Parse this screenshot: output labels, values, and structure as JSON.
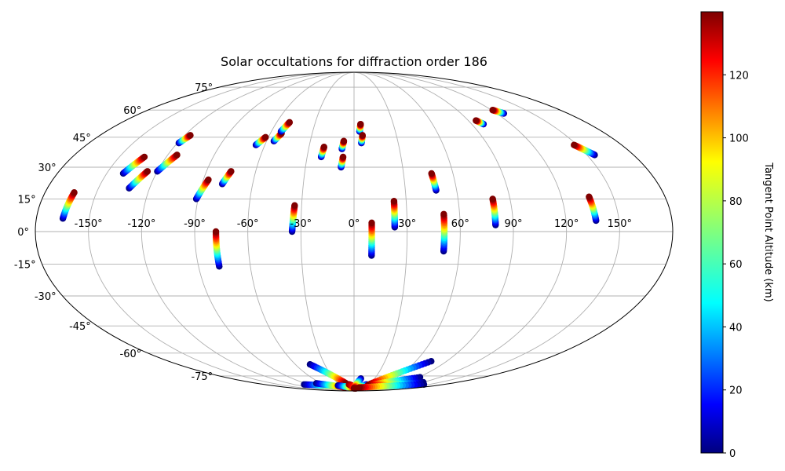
{
  "chart_data": {
    "type": "scatter",
    "projection": "mollweide",
    "title": "Solar occultations for diffraction order 186",
    "grid": true,
    "x_ticks": [
      -150,
      -120,
      -90,
      -60,
      -30,
      0,
      30,
      60,
      90,
      120,
      150
    ],
    "x_tick_labels": [
      "-150°",
      "-120°",
      "-90°",
      "-60°",
      "-30°",
      "0°",
      "30°",
      "60°",
      "90°",
      "120°",
      "150°"
    ],
    "y_ticks": [
      -75,
      -60,
      -45,
      -30,
      -15,
      0,
      15,
      30,
      45,
      60,
      75
    ],
    "y_tick_labels": [
      "-75°",
      "-60°",
      "-45°",
      "-30°",
      "-15°",
      "0°",
      "15°",
      "30°",
      "45°",
      "60°",
      "75°"
    ],
    "colorbar": {
      "label": "Tangent Point Altitude (km)",
      "range": [
        0,
        140
      ],
      "ticks": [
        0,
        20,
        40,
        60,
        80,
        100,
        120
      ],
      "tick_labels": [
        "0",
        "20",
        "40",
        "60",
        "80",
        "100",
        "120"
      ],
      "colormap": "jet"
    },
    "tracks": [
      {
        "lon": [
          -165,
          -163
        ],
        "lat": [
          6,
          18
        ],
        "alt": [
          0,
          140
        ]
      },
      {
        "lon": [
          -140,
          -134
        ],
        "lat": [
          27,
          35
        ],
        "alt": [
          0,
          140
        ]
      },
      {
        "lon": [
          -132,
          -126
        ],
        "lat": [
          20,
          28
        ],
        "alt": [
          0,
          140
        ]
      },
      {
        "lon": [
          -119,
          -116
        ],
        "lat": [
          42,
          46
        ],
        "alt": [
          0,
          140
        ]
      },
      {
        "lon": [
          -120,
          -114
        ],
        "lat": [
          28,
          36
        ],
        "alt": [
          0,
          140
        ]
      },
      {
        "lon": [
          -91,
          -87
        ],
        "lat": [
          15,
          24
        ],
        "alt": [
          0,
          140
        ]
      },
      {
        "lon": [
          -78,
          -75
        ],
        "lat": [
          22,
          28
        ],
        "alt": [
          0,
          140
        ]
      },
      {
        "lon": [
          -66,
          -62
        ],
        "lat": [
          41,
          45
        ],
        "alt": [
          0,
          140
        ]
      },
      {
        "lon": [
          -55,
          -52
        ],
        "lat": [
          43,
          47
        ],
        "alt": [
          0,
          140
        ]
      },
      {
        "lon": [
          -53,
          -50
        ],
        "lat": [
          48,
          53
        ],
        "alt": [
          0,
          140
        ]
      },
      {
        "lon": [
          -78,
          -78
        ],
        "lat": [
          -16,
          0
        ],
        "alt": [
          0,
          140
        ]
      },
      {
        "lon": [
          -35,
          -34
        ],
        "lat": [
          0,
          12
        ],
        "alt": [
          0,
          140
        ]
      },
      {
        "lon": [
          -21,
          -20
        ],
        "lat": [
          35,
          40
        ],
        "alt": [
          0,
          140
        ]
      },
      {
        "lon": [
          -8,
          -7
        ],
        "lat": [
          39,
          43
        ],
        "alt": [
          0,
          140
        ]
      },
      {
        "lon": [
          -8,
          -7
        ],
        "lat": [
          30,
          35
        ],
        "alt": [
          0,
          140
        ]
      },
      {
        "lon": [
          4,
          5
        ],
        "lat": [
          48,
          52
        ],
        "alt": [
          0,
          140
        ]
      },
      {
        "lon": [
          5,
          6
        ],
        "lat": [
          42,
          46
        ],
        "alt": [
          0,
          140
        ]
      },
      {
        "lon": [
          10,
          10
        ],
        "lat": [
          -11,
          4
        ],
        "alt": [
          0,
          140
        ]
      },
      {
        "lon": [
          23,
          23
        ],
        "lat": [
          2,
          14
        ],
        "alt": [
          0,
          140
        ]
      },
      {
        "lon": [
          48,
          47
        ],
        "lat": [
          19,
          27
        ],
        "alt": [
          0,
          140
        ]
      },
      {
        "lon": [
          51,
          51
        ],
        "lat": [
          -9,
          8
        ],
        "alt": [
          0,
          140
        ]
      },
      {
        "lon": [
          80,
          80
        ],
        "lat": [
          3,
          15
        ],
        "alt": [
          0,
          140
        ]
      },
      {
        "lon": [
          99,
          96
        ],
        "lat": [
          52,
          54
        ],
        "alt": [
          0,
          140
        ]
      },
      {
        "lon": [
          126,
          121
        ],
        "lat": [
          58,
          60
        ],
        "alt": [
          0,
          140
        ]
      },
      {
        "lon": [
          137,
          136
        ],
        "lat": [
          5,
          16
        ],
        "alt": [
          0,
          140
        ]
      },
      {
        "lon": [
          155,
          148
        ],
        "lat": [
          36,
          41
        ],
        "alt": [
          0,
          140
        ]
      },
      {
        "lon": [
          -45,
          -15
        ],
        "lat": [
          -67,
          -81
        ],
        "alt": [
          0,
          140
        ]
      },
      {
        "lon": [
          -100,
          -20
        ],
        "lat": [
          -82,
          -84
        ],
        "alt": [
          0,
          140
        ]
      },
      {
        "lon": [
          -70,
          -25
        ],
        "lat": [
          -81,
          -85
        ],
        "alt": [
          0,
          140
        ]
      },
      {
        "lon": [
          -35,
          5
        ],
        "lat": [
          -83,
          -86
        ],
        "alt": [
          0,
          140
        ]
      },
      {
        "lon": [
          -10,
          0
        ],
        "lat": [
          -82,
          -84
        ],
        "alt": [
          140,
          120
        ]
      },
      {
        "lon": [
          10,
          0
        ],
        "lat": [
          -77,
          -86
        ],
        "alt": [
          0,
          140
        ]
      },
      {
        "lon": [
          25,
          5
        ],
        "lat": [
          -82,
          -86
        ],
        "alt": [
          0,
          140
        ]
      },
      {
        "lon": [
          75,
          30
        ],
        "lat": [
          -65,
          -82
        ],
        "alt": [
          0,
          140
        ]
      },
      {
        "lon": [
          92,
          30
        ],
        "lat": [
          -76,
          -83
        ],
        "alt": [
          0,
          140
        ]
      },
      {
        "lon": [
          120,
          40
        ],
        "lat": [
          -80,
          -84
        ],
        "alt": [
          0,
          140
        ]
      },
      {
        "lon": [
          140,
          15
        ],
        "lat": [
          -82,
          -85
        ],
        "alt": [
          0,
          140
        ]
      }
    ]
  }
}
